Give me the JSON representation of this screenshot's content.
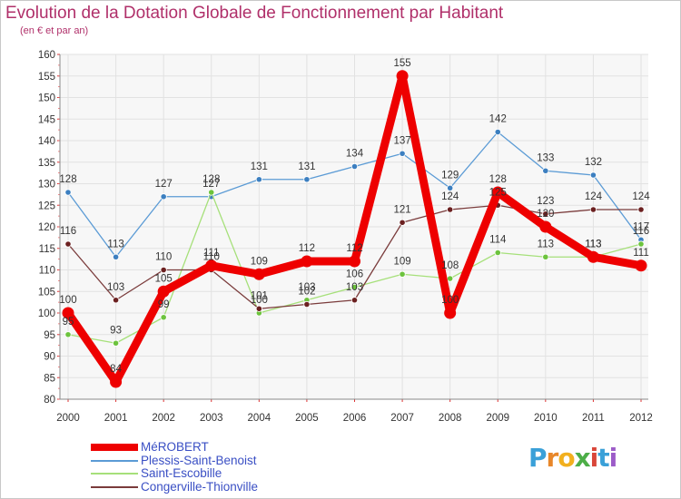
{
  "header": {
    "title": "Evolution de la Dotation Globale de Fonctionnement par Habitant",
    "subtitle": "(en € et par an)"
  },
  "logo": {
    "letters": [
      "P",
      "r",
      "o",
      "x",
      "i",
      "t",
      "i"
    ],
    "colors": [
      "#3aa0d8",
      "#e8872a",
      "#f2b01e",
      "#4dae48",
      "#d9463a",
      "#3aa0d8",
      "#9c5cc8"
    ]
  },
  "chart_data": {
    "type": "line",
    "title": "Evolution de la Dotation Globale de Fonctionnement par Habitant",
    "subtitle": "(en € et par an)",
    "xlabel": "",
    "ylabel": "",
    "ylim": [
      80,
      160
    ],
    "yticks": [
      "80",
      "85",
      "90",
      "95",
      "100",
      "105",
      "110",
      "115",
      "120",
      "125",
      "130",
      "135",
      "140",
      "145",
      "150",
      "155",
      "160"
    ],
    "categories": [
      "2000",
      "2001",
      "2002",
      "2003",
      "2004",
      "2005",
      "2006",
      "2007",
      "2008",
      "2009",
      "2010",
      "2011",
      "2012"
    ],
    "grid": true,
    "legend_position": "bottom-left",
    "series": [
      {
        "name": "Plessis-Saint-Benoist",
        "color": "#5b9bd5",
        "point_color": "#3c7fc0",
        "thick": false,
        "values": [
          128,
          113,
          127,
          127,
          131,
          131,
          134,
          137,
          129,
          142,
          133,
          132,
          117
        ],
        "labels": [
          "128",
          "113",
          "127",
          "127",
          "131",
          "131",
          "134",
          "137",
          "129",
          "142",
          "133",
          "132",
          "117"
        ]
      },
      {
        "name": "Saint-Escobille",
        "color": "#a6e07a",
        "point_color": "#6cc33d",
        "thick": false,
        "values": [
          95,
          93,
          99,
          128,
          100,
          103,
          106,
          109,
          108,
          114,
          113,
          113,
          116
        ],
        "labels": [
          "95",
          "93",
          "99",
          "128",
          "100",
          "103",
          "106",
          "109",
          "108",
          "114",
          "113",
          "113",
          "116"
        ]
      },
      {
        "name": "Congerville-Thionville",
        "color": "#7a3b3b",
        "point_color": "#6b2020",
        "thick": false,
        "values": [
          116,
          103,
          110,
          110,
          101,
          102,
          103,
          121,
          124,
          125,
          123,
          124,
          124
        ],
        "labels": [
          "116",
          "103",
          "110",
          "110",
          "101",
          "102",
          "103",
          "121",
          "124",
          "125",
          "123",
          "124",
          "124"
        ]
      },
      {
        "name": "MéROBERT",
        "color": "#ee0000",
        "point_color": "#ee0000",
        "thick": true,
        "values": [
          100,
          84,
          105,
          111,
          109,
          112,
          112,
          155,
          100,
          128,
          120,
          113,
          111
        ],
        "labels": [
          "100",
          "84",
          "105",
          "111",
          "109",
          "112",
          "112",
          "155",
          "100",
          "128",
          "120",
          "113",
          "111"
        ]
      }
    ],
    "legend_order": [
      "MéROBERT",
      "Plessis-Saint-Benoist",
      "Saint-Escobille",
      "Congerville-Thionville"
    ]
  }
}
